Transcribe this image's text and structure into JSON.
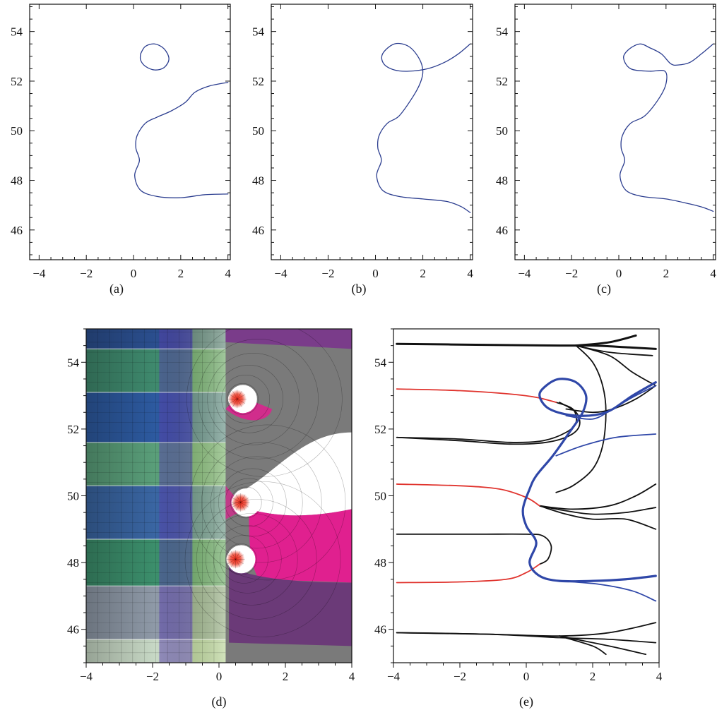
{
  "chart_data": [
    {
      "type": "line",
      "caption": "(a)",
      "xlim": [
        -4.4,
        4.1
      ],
      "ylim": [
        44.8,
        55.1
      ],
      "xticks": [
        -4,
        -2,
        0,
        2,
        4
      ],
      "yticks": [
        46,
        48,
        50,
        52,
        54
      ],
      "series": [
        {
          "color": "#2b3d8f",
          "points": [
            [
              0.3,
              53.1
            ],
            [
              0.5,
              53.4
            ],
            [
              0.9,
              53.5
            ],
            [
              1.3,
              53.3
            ],
            [
              1.5,
              52.9
            ],
            [
              1.3,
              52.55
            ],
            [
              0.9,
              52.45
            ],
            [
              0.5,
              52.6
            ],
            [
              0.3,
              52.85
            ],
            [
              0.3,
              53.1
            ]
          ]
        },
        {
          "color": "#2b3d8f",
          "points": [
            [
              4.0,
              51.95
            ],
            [
              3.2,
              51.8
            ],
            [
              2.6,
              51.55
            ],
            [
              2.2,
              51.15
            ],
            [
              1.6,
              50.8
            ],
            [
              1.0,
              50.55
            ],
            [
              0.5,
              50.3
            ],
            [
              0.15,
              49.8
            ],
            [
              0.1,
              49.3
            ],
            [
              0.25,
              48.8
            ],
            [
              0.05,
              48.2
            ],
            [
              0.3,
              47.6
            ],
            [
              1.0,
              47.35
            ],
            [
              2.0,
              47.3
            ],
            [
              3.0,
              47.42
            ],
            [
              4.0,
              47.45
            ]
          ]
        }
      ]
    },
    {
      "type": "line",
      "caption": "(b)",
      "xlim": [
        -4.4,
        4.1
      ],
      "ylim": [
        44.8,
        55.1
      ],
      "xticks": [
        -4,
        -2,
        0,
        2,
        4
      ],
      "yticks": [
        46,
        48,
        50,
        52,
        54
      ],
      "series": [
        {
          "color": "#2b3d8f",
          "points": [
            [
              4.0,
              53.5
            ],
            [
              3.5,
              53.1
            ],
            [
              2.9,
              52.75
            ],
            [
              2.2,
              52.5
            ],
            [
              1.4,
              52.4
            ],
            [
              0.8,
              52.45
            ],
            [
              0.35,
              52.7
            ],
            [
              0.3,
              53.1
            ],
            [
              0.8,
              53.5
            ],
            [
              1.4,
              53.4
            ],
            [
              1.85,
              52.9
            ],
            [
              2.0,
              52.4
            ],
            [
              1.9,
              51.95
            ],
            [
              1.6,
              51.4
            ],
            [
              1.0,
              50.6
            ],
            [
              0.5,
              50.3
            ],
            [
              0.15,
              49.8
            ],
            [
              0.1,
              49.3
            ],
            [
              0.25,
              48.8
            ],
            [
              0.05,
              48.2
            ],
            [
              0.3,
              47.6
            ],
            [
              1.0,
              47.35
            ],
            [
              2.0,
              47.25
            ],
            [
              3.0,
              47.15
            ],
            [
              3.6,
              46.95
            ],
            [
              4.0,
              46.7
            ]
          ]
        }
      ]
    },
    {
      "type": "line",
      "caption": "(c)",
      "xlim": [
        -4.4,
        4.1
      ],
      "ylim": [
        44.8,
        55.1
      ],
      "xticks": [
        -4,
        -2,
        0,
        2,
        4
      ],
      "yticks": [
        46,
        48,
        50,
        52,
        54
      ],
      "series": [
        {
          "color": "#2b3d8f",
          "points": [
            [
              4.0,
              53.5
            ],
            [
              3.5,
              53.1
            ],
            [
              3.0,
              52.75
            ],
            [
              2.5,
              52.65
            ],
            [
              2.2,
              52.7
            ],
            [
              1.8,
              53.1
            ],
            [
              1.3,
              53.35
            ],
            [
              0.9,
              53.5
            ],
            [
              0.45,
              53.3
            ],
            [
              0.2,
              52.95
            ],
            [
              0.5,
              52.5
            ],
            [
              1.3,
              52.4
            ],
            [
              1.95,
              52.4
            ],
            [
              2.0,
              51.9
            ],
            [
              1.7,
              51.3
            ],
            [
              1.1,
              50.6
            ],
            [
              0.5,
              50.3
            ],
            [
              0.15,
              49.8
            ],
            [
              0.1,
              49.3
            ],
            [
              0.25,
              48.8
            ],
            [
              0.05,
              48.2
            ],
            [
              0.3,
              47.6
            ],
            [
              1.0,
              47.35
            ],
            [
              2.0,
              47.25
            ],
            [
              3.0,
              47.05
            ],
            [
              3.6,
              46.9
            ],
            [
              4.0,
              46.75
            ]
          ]
        }
      ]
    },
    {
      "type": "heatmap",
      "caption": "(d)",
      "xlim": [
        -4,
        4
      ],
      "ylim": [
        45,
        55
      ],
      "xticks": [
        -4,
        -2,
        0,
        2,
        4
      ],
      "yticks": [
        46,
        48,
        50,
        52,
        54
      ],
      "bands": [
        {
          "y_from": 45.0,
          "y_to": 45.7,
          "color": "#c8d9c6"
        },
        {
          "y_from": 45.7,
          "y_to": 47.3,
          "color": "#8f9aa8"
        },
        {
          "y_from": 47.3,
          "y_to": 48.7,
          "color": "#3c8f6c"
        },
        {
          "y_from": 48.7,
          "y_to": 50.3,
          "color": "#3a66a3"
        },
        {
          "y_from": 50.3,
          "y_to": 51.6,
          "color": "#5a9f7a"
        },
        {
          "y_from": 51.6,
          "y_to": 53.1,
          "color": "#2d5aa0"
        },
        {
          "y_from": 53.1,
          "y_to": 54.4,
          "color": "#3f8a6e"
        },
        {
          "y_from": 54.4,
          "y_to": 55.0,
          "color": "#2b4f8f"
        }
      ],
      "poles": [
        [
          0.55,
          52.9
        ],
        [
          0.65,
          49.8
        ],
        [
          0.5,
          48.1
        ]
      ],
      "colors": {
        "magenta": "#e0208f",
        "purple": "#6b3a78",
        "green": "#a8d060",
        "white": "#ffffff",
        "grey": "#7a7a7a",
        "red": "#e43322"
      }
    },
    {
      "type": "line",
      "caption": "(e)",
      "xlim": [
        -4,
        4
      ],
      "ylim": [
        45,
        55
      ],
      "xticks": [
        -4,
        -2,
        0,
        2,
        4
      ],
      "yticks": [
        46,
        48,
        50,
        52,
        54
      ],
      "series": [
        {
          "color": "#111111",
          "points": [
            [
              -3.9,
              54.55
            ],
            [
              -1,
              54.52
            ],
            [
              1,
              54.5
            ],
            [
              2,
              54.5
            ],
            [
              3,
              54.45
            ],
            [
              3.9,
              54.4
            ]
          ]
        },
        {
          "color": "#111111",
          "points": [
            [
              1.5,
              54.5
            ],
            [
              2.5,
              54.6
            ],
            [
              3.3,
              54.8
            ]
          ]
        },
        {
          "color": "#111111",
          "points": [
            [
              1.5,
              54.5
            ],
            [
              2.5,
              54.3
            ],
            [
              3.8,
              54.2
            ]
          ]
        },
        {
          "color": "#111111",
          "points": [
            [
              1.5,
              54.5
            ],
            [
              2.5,
              54.2
            ],
            [
              3.2,
              53.7
            ],
            [
              3.9,
              53.3
            ]
          ]
        },
        {
          "color": "#111111",
          "points": [
            [
              1.5,
              54.5
            ],
            [
              2.0,
              54.0
            ],
            [
              2.3,
              53.3
            ],
            [
              2.4,
              52.5
            ],
            [
              2.3,
              51.5
            ],
            [
              2.0,
              50.8
            ],
            [
              1.4,
              50.3
            ],
            [
              0.9,
              50.1
            ]
          ]
        },
        {
          "color": "#111111",
          "points": [
            [
              -3.9,
              51.75
            ],
            [
              -2,
              51.7
            ],
            [
              -0.5,
              51.6
            ],
            [
              0.5,
              51.65
            ],
            [
              1.2,
              51.9
            ],
            [
              1.5,
              52.2
            ],
            [
              1.4,
              52.6
            ],
            [
              0.9,
              52.8
            ]
          ]
        },
        {
          "color": "#111111",
          "points": [
            [
              -3.9,
              51.75
            ],
            [
              -2,
              51.65
            ],
            [
              -0.5,
              51.55
            ],
            [
              0.6,
              51.6
            ],
            [
              1.3,
              51.8
            ],
            [
              1.6,
              52.1
            ],
            [
              1.5,
              52.5
            ],
            [
              1.0,
              52.8
            ]
          ]
        },
        {
          "color": "#111111",
          "points": [
            [
              1.2,
              52.6
            ],
            [
              2.0,
              52.5
            ],
            [
              2.6,
              52.6
            ],
            [
              3.3,
              52.9
            ],
            [
              3.9,
              53.3
            ]
          ]
        },
        {
          "color": "#111111",
          "points": [
            [
              -3.9,
              48.85
            ],
            [
              -1.5,
              48.85
            ],
            [
              0,
              48.85
            ],
            [
              0.5,
              48.8
            ],
            [
              0.75,
              48.5
            ],
            [
              0.65,
              48.1
            ],
            [
              0.4,
              47.95
            ]
          ]
        },
        {
          "color": "#111111",
          "points": [
            [
              0.4,
              49.7
            ],
            [
              1.2,
              49.45
            ],
            [
              2,
              49.3
            ],
            [
              3,
              49.3
            ],
            [
              3.9,
              49.0
            ]
          ]
        },
        {
          "color": "#111111",
          "points": [
            [
              0.4,
              49.7
            ],
            [
              1.2,
              49.55
            ],
            [
              2,
              49.45
            ],
            [
              3,
              49.5
            ],
            [
              3.9,
              49.65
            ]
          ]
        },
        {
          "color": "#111111",
          "points": [
            [
              0.4,
              49.7
            ],
            [
              1.4,
              49.6
            ],
            [
              2.5,
              49.7
            ],
            [
              3.3,
              50.0
            ],
            [
              3.9,
              50.35
            ]
          ]
        },
        {
          "color": "#111111",
          "points": [
            [
              -3.9,
              45.9
            ],
            [
              -1,
              45.85
            ],
            [
              1,
              45.8
            ],
            [
              2.5,
              45.9
            ],
            [
              3.9,
              46.2
            ]
          ]
        },
        {
          "color": "#111111",
          "points": [
            [
              -3.9,
              45.9
            ],
            [
              -1,
              45.85
            ],
            [
              1,
              45.75
            ],
            [
              2.5,
              45.7
            ],
            [
              3.9,
              45.6
            ]
          ]
        },
        {
          "color": "#111111",
          "points": [
            [
              1,
              45.8
            ],
            [
              2,
              45.5
            ],
            [
              2.4,
              45.25
            ]
          ]
        },
        {
          "color": "#111111",
          "points": [
            [
              1,
              45.8
            ],
            [
              2.5,
              45.5
            ],
            [
              3.6,
              45.25
            ]
          ]
        },
        {
          "color": "#e0332d",
          "points": [
            [
              -3.9,
              53.2
            ],
            [
              -2,
              53.15
            ],
            [
              -0.5,
              53.05
            ],
            [
              0.3,
              52.95
            ],
            [
              0.9,
              52.8
            ]
          ]
        },
        {
          "color": "#e0332d",
          "points": [
            [
              -3.9,
              50.35
            ],
            [
              -2,
              50.3
            ],
            [
              -0.8,
              50.2
            ],
            [
              0,
              49.95
            ],
            [
              0.4,
              49.7
            ]
          ]
        },
        {
          "color": "#e0332d",
          "points": [
            [
              -3.9,
              47.4
            ],
            [
              -2,
              47.42
            ],
            [
              -0.6,
              47.5
            ],
            [
              0,
              47.7
            ],
            [
              0.4,
              47.95
            ]
          ]
        },
        {
          "color": "#2f47a8",
          "points": [
            [
              3.9,
              53.4
            ],
            [
              3.2,
              53.0
            ],
            [
              2.4,
              52.5
            ],
            [
              1.5,
              52.4
            ],
            [
              0.7,
              52.6
            ],
            [
              0.4,
              53.0
            ],
            [
              0.6,
              53.3
            ],
            [
              1.0,
              53.5
            ],
            [
              1.5,
              53.4
            ],
            [
              1.8,
              53.0
            ],
            [
              1.7,
              52.5
            ],
            [
              1.3,
              51.9
            ],
            [
              0.8,
              51.2
            ],
            [
              0.3,
              50.6
            ],
            [
              0.1,
              50.2
            ],
            [
              -0.1,
              49.6
            ],
            [
              0.0,
              49.1
            ],
            [
              0.3,
              48.6
            ],
            [
              0.1,
              48.0
            ],
            [
              0.4,
              47.6
            ],
            [
              1.0,
              47.45
            ],
            [
              2.0,
              47.45
            ],
            [
              3.0,
              47.5
            ],
            [
              3.9,
              47.6
            ]
          ]
        },
        {
          "color": "#2f47a8",
          "points": [
            [
              0.9,
              51.2
            ],
            [
              1.7,
              51.5
            ],
            [
              2.7,
              51.75
            ],
            [
              3.9,
              51.85
            ]
          ]
        },
        {
          "color": "#2f47a8",
          "points": [
            [
              1.0,
              47.45
            ],
            [
              2.2,
              47.35
            ],
            [
              3.2,
              47.15
            ],
            [
              3.9,
              46.85
            ]
          ]
        },
        {
          "color": "#2f47a8",
          "points": [
            [
              1.2,
              52.4
            ],
            [
              2.0,
              52.3
            ],
            [
              2.6,
              52.6
            ],
            [
              3.2,
              52.95
            ],
            [
              3.9,
              53.3
            ]
          ]
        }
      ]
    }
  ]
}
